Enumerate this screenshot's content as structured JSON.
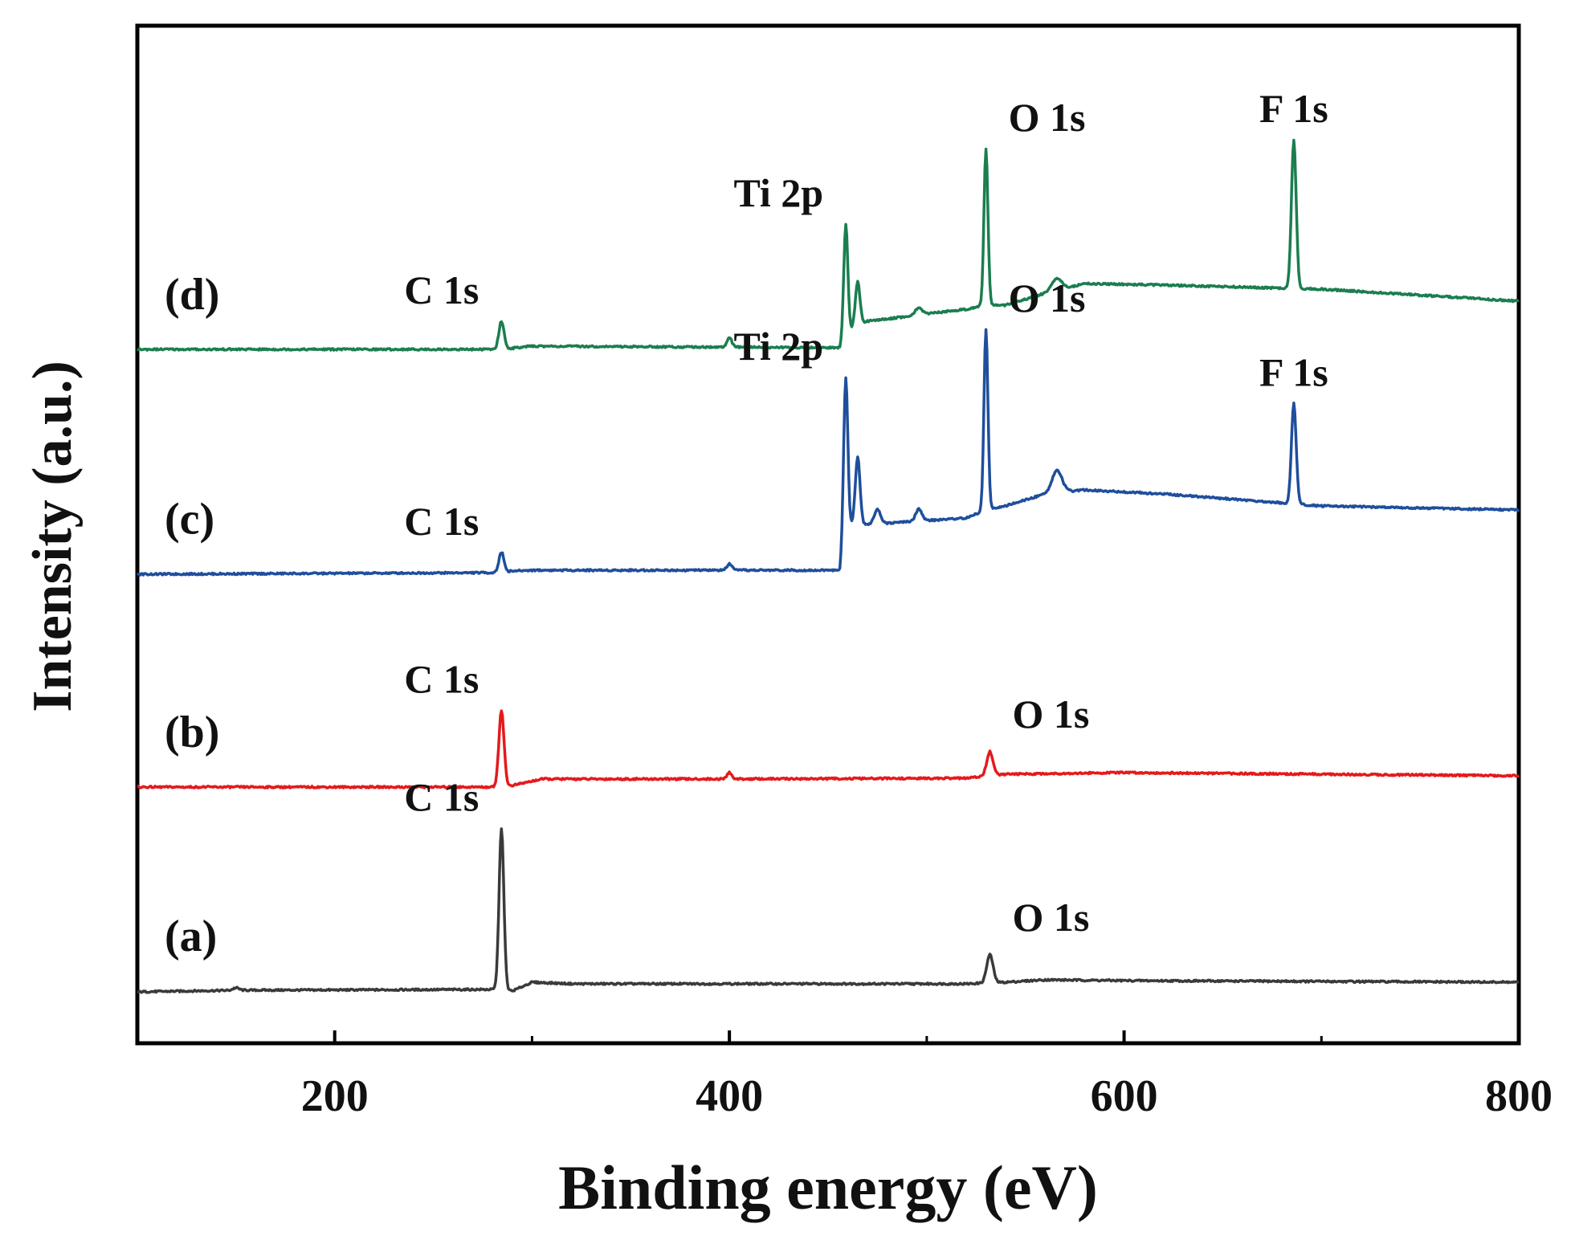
{
  "chart_data": {
    "type": "line",
    "title": "",
    "xlabel": "Binding energy (eV)",
    "ylabel": "Intensity (a.u.)",
    "xlim": [
      100,
      800
    ],
    "xticks": [
      200,
      400,
      600,
      800
    ],
    "yticks_shown": false,
    "grid": false,
    "series": [
      {
        "name": "(a)",
        "color": "#3a3a3a",
        "offset": 0,
        "baseline": [
          [
            100,
            0
          ],
          [
            150,
            2
          ],
          [
            282,
            3
          ],
          [
            284,
            4
          ],
          [
            290,
            1
          ],
          [
            300,
            12
          ],
          [
            320,
            10
          ],
          [
            400,
            10
          ],
          [
            520,
            10
          ],
          [
            540,
            12
          ],
          [
            560,
            15
          ],
          [
            600,
            14
          ],
          [
            700,
            13
          ],
          [
            800,
            12
          ]
        ],
        "peaks": [
          {
            "label": "C 1s",
            "position": 284.5,
            "height": 200,
            "width": 1.2
          },
          {
            "label": "",
            "position": 150,
            "height": 3,
            "width": 1.5
          },
          {
            "label": "O 1s",
            "position": 532,
            "height": 35,
            "width": 1.6
          }
        ]
      },
      {
        "name": "(b)",
        "color": "#e41a1c",
        "offset": 255,
        "baseline": [
          [
            100,
            0
          ],
          [
            282,
            0
          ],
          [
            290,
            2
          ],
          [
            305,
            10
          ],
          [
            400,
            10
          ],
          [
            520,
            11
          ],
          [
            540,
            16
          ],
          [
            600,
            18
          ],
          [
            700,
            16
          ],
          [
            800,
            14
          ]
        ],
        "peaks": [
          {
            "label": "C 1s",
            "position": 284.5,
            "height": 95,
            "width": 1.3
          },
          {
            "label": "",
            "position": 400,
            "height": 8,
            "width": 1.2
          },
          {
            "label": "O 1s",
            "position": 532,
            "height": 30,
            "width": 1.6
          }
        ]
      },
      {
        "name": "(c)",
        "color": "#1f4e9c",
        "offset": 520,
        "baseline": [
          [
            100,
            0
          ],
          [
            284,
            2
          ],
          [
            290,
            4
          ],
          [
            300,
            5
          ],
          [
            456,
            5
          ],
          [
            458,
            60
          ],
          [
            470,
            62
          ],
          [
            520,
            70
          ],
          [
            530,
            80
          ],
          [
            540,
            85
          ],
          [
            560,
            100
          ],
          [
            580,
            105
          ],
          [
            620,
            100
          ],
          [
            700,
            85
          ],
          [
            800,
            80
          ]
        ],
        "peaks": [
          {
            "label": "C 1s",
            "position": 284.5,
            "height": 25,
            "width": 1.3
          },
          {
            "label": "",
            "position": 400,
            "height": 8,
            "width": 1.2
          },
          {
            "label": "Ti 2p",
            "position": 459,
            "height": 185,
            "width": 1.0
          },
          {
            "label": "",
            "position": 465,
            "height": 85,
            "width": 1.2
          },
          {
            "label": "",
            "position": 475,
            "height": 18,
            "width": 1.6
          },
          {
            "label": "",
            "position": 496,
            "height": 15,
            "width": 1.6
          },
          {
            "label": "O 1s",
            "position": 530,
            "height": 225,
            "width": 1.0
          },
          {
            "label": "",
            "position": 566,
            "height": 28,
            "width": 2.5
          },
          {
            "label": "F 1s",
            "position": 686,
            "height": 125,
            "width": 1.2
          }
        ]
      },
      {
        "name": "(d)",
        "color": "#1b7e4f",
        "offset": 800,
        "baseline": [
          [
            100,
            0
          ],
          [
            284,
            0
          ],
          [
            300,
            4
          ],
          [
            456,
            2
          ],
          [
            458,
            20
          ],
          [
            470,
            35
          ],
          [
            520,
            50
          ],
          [
            530,
            55
          ],
          [
            540,
            55
          ],
          [
            560,
            70
          ],
          [
            580,
            82
          ],
          [
            620,
            80
          ],
          [
            700,
            75
          ],
          [
            800,
            60
          ]
        ],
        "peaks": [
          {
            "label": "C 1s",
            "position": 284.5,
            "height": 35,
            "width": 1.3
          },
          {
            "label": "",
            "position": 400,
            "height": 12,
            "width": 1.2
          },
          {
            "label": "Ti 2p",
            "position": 459,
            "height": 135,
            "width": 1.0
          },
          {
            "label": "",
            "position": 465,
            "height": 55,
            "width": 1.2
          },
          {
            "label": "",
            "position": 496,
            "height": 10,
            "width": 1.6
          },
          {
            "label": "O 1s",
            "position": 530,
            "height": 195,
            "width": 1.0
          },
          {
            "label": "",
            "position": 566,
            "height": 15,
            "width": 2.5
          },
          {
            "label": "F 1s",
            "position": 686,
            "height": 185,
            "width": 1.2
          }
        ]
      }
    ]
  }
}
